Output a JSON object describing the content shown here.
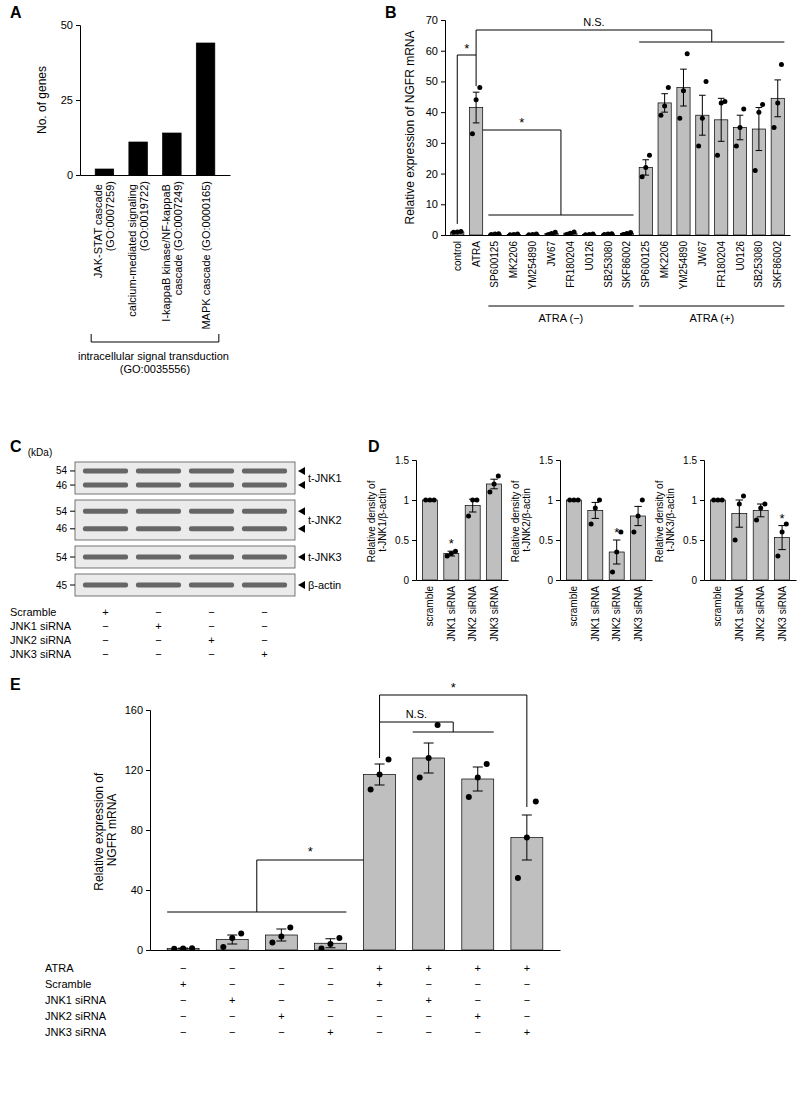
{
  "chart_data": [
    {
      "panel": "A",
      "type": "bar",
      "ylabel": "No. of genes",
      "categories": [
        "JAK-STAT cascade (GO:0007259)",
        "calcium-mediated signaling (GO:0019722)",
        "I-kappaB kinase/NF-kappaB cascade (GO:0007249)",
        "MAPK cascade (GO:0000165)"
      ],
      "values": [
        2,
        11,
        14,
        44
      ],
      "color": "#000000",
      "ylim": [
        0,
        50
      ],
      "yticks": [
        0,
        25,
        50
      ],
      "group_label": "intracellular signal transduction (GO:0035556)"
    },
    {
      "panel": "B",
      "type": "bar",
      "ylabel": "Relative expression of NGFR mRNA",
      "categories": [
        "control",
        "ATRA",
        "SP600125",
        "MK2206",
        "YM254890",
        "JW67",
        "FR180204",
        "U0126",
        "SB253080",
        "SKF86002",
        "SP600125",
        "MK2206",
        "YM254890",
        "JW67",
        "FR180204",
        "U0126",
        "SB253080",
        "SKF86002"
      ],
      "values": [
        1.0,
        41.5,
        0.3,
        0.2,
        0.2,
        0.5,
        0.6,
        0.2,
        0.3,
        0.5,
        22.0,
        43.0,
        48.0,
        39.0,
        37.5,
        35.0,
        34.5,
        44.5
      ],
      "errors": [
        0.1,
        5.0,
        0.1,
        0.05,
        0.05,
        0.3,
        0.3,
        0.05,
        0.1,
        0.3,
        2.5,
        3.0,
        6.0,
        6.5,
        7.0,
        4.0,
        7.0,
        6.0
      ],
      "points": [
        [
          0.9,
          1.0,
          1.1
        ],
        [
          33,
          44,
          48
        ],
        [
          0.2,
          0.3,
          0.4
        ],
        [
          0.1,
          0.2,
          0.3
        ],
        [
          0.1,
          0.2,
          0.3
        ],
        [
          0.1,
          0.5,
          0.9
        ],
        [
          0.2,
          0.6,
          1.0
        ],
        [
          0.1,
          0.2,
          0.3
        ],
        [
          0.2,
          0.3,
          0.4
        ],
        [
          0.2,
          0.5,
          0.8
        ],
        [
          19,
          22,
          26
        ],
        [
          39,
          42,
          48
        ],
        [
          38,
          47,
          59
        ],
        [
          29,
          38,
          50
        ],
        [
          26,
          43,
          43.5
        ],
        [
          29,
          35,
          41
        ],
        [
          21,
          40,
          42.5
        ],
        [
          35,
          43,
          55.5
        ]
      ],
      "color": "#bfbfbf",
      "ylim": [
        0,
        70
      ],
      "yticks": [
        0,
        10,
        20,
        30,
        40,
        50,
        60,
        70
      ],
      "groups": [
        "ATRA (−)",
        "ATRA (+)"
      ],
      "annotations": [
        "*",
        "*",
        "N.S."
      ]
    },
    {
      "panel": "C",
      "type": "blot",
      "unit_label": "(kDa)",
      "rows": [
        {
          "label": "t-JNK1",
          "markers": [
            54,
            46
          ]
        },
        {
          "label": "t-JNK2",
          "markers": [
            54,
            46
          ]
        },
        {
          "label": "t-JNK3",
          "markers": [
            54
          ]
        },
        {
          "label": "β-actin",
          "markers": [
            45
          ]
        }
      ],
      "conditions": [
        {
          "label": "Scramble",
          "signs": [
            "+",
            "−",
            "−",
            "−"
          ]
        },
        {
          "label": "JNK1 siRNA",
          "signs": [
            "−",
            "+",
            "−",
            "−"
          ]
        },
        {
          "label": "JNK2 siRNA",
          "signs": [
            "−",
            "−",
            "+",
            "−"
          ]
        },
        {
          "label": "JNK3 siRNA",
          "signs": [
            "−",
            "−",
            "−",
            "+"
          ]
        }
      ]
    },
    {
      "panel": "D",
      "type": "bar",
      "ylabel": "Relative density of t-JNK1/β-actin",
      "categories": [
        "scramble",
        "JNK1 siRNA",
        "JNK2 siRNA",
        "JNK3 siRNA"
      ],
      "values": [
        1,
        0.33,
        0.93,
        1.2
      ],
      "errors": [
        0,
        0.03,
        0.08,
        0.06
      ],
      "points": [
        [
          1,
          1,
          1
        ],
        [
          0.3,
          0.33,
          0.36
        ],
        [
          0.8,
          1.0,
          1.0
        ],
        [
          1.1,
          1.2,
          1.3
        ]
      ],
      "significance": [
        null,
        "*",
        null,
        null
      ],
      "color": "#bfbfbf",
      "ylim": [
        0,
        1.5
      ],
      "yticks": [
        0,
        0.5,
        1,
        1.5
      ]
    },
    {
      "type": "bar",
      "ylabel": "Relative density of t-JNK2/β-actin",
      "categories": [
        "scramble",
        "JNK1 siRNA",
        "JNK2 siRNA",
        "JNK3 siRNA"
      ],
      "values": [
        1,
        0.87,
        0.35,
        0.8
      ],
      "errors": [
        0,
        0.1,
        0.15,
        0.12
      ],
      "points": [
        [
          1,
          1,
          1
        ],
        [
          0.7,
          0.9,
          1.0
        ],
        [
          0.1,
          0.35,
          0.6
        ],
        [
          0.6,
          0.8,
          1.0
        ]
      ],
      "significance": [
        null,
        null,
        "*",
        null
      ],
      "color": "#bfbfbf",
      "ylim": [
        0,
        1.5
      ],
      "yticks": [
        0,
        0.5,
        1,
        1.5
      ]
    },
    {
      "type": "bar",
      "ylabel": "Relative density of t-JNK3/β-actin",
      "categories": [
        "scramble",
        "JNK1 siRNA",
        "JNK2 siRNA",
        "JNK3 siRNA"
      ],
      "values": [
        1,
        0.83,
        0.87,
        0.53
      ],
      "errors": [
        0,
        0.17,
        0.08,
        0.15
      ],
      "points": [
        [
          1,
          1,
          1
        ],
        [
          0.5,
          0.95,
          1.05
        ],
        [
          0.75,
          0.9,
          0.95
        ],
        [
          0.3,
          0.6,
          0.7
        ]
      ],
      "significance": [
        null,
        null,
        null,
        "*"
      ],
      "color": "#bfbfbf",
      "ylim": [
        0,
        1.5
      ],
      "yticks": [
        0,
        0.5,
        1,
        1.5
      ]
    },
    {
      "panel": "E",
      "type": "bar",
      "ylabel": "Relative expression of NGFR mRNA",
      "categories": [
        null,
        null,
        null,
        null,
        null,
        null,
        null,
        null
      ],
      "values": [
        1,
        7,
        10,
        4.5,
        117,
        128,
        114,
        75
      ],
      "errors": [
        0.3,
        3,
        4,
        3,
        7,
        10,
        8,
        15
      ],
      "points": [
        [
          0.8,
          1,
          1.2
        ],
        [
          2,
          8,
          11
        ],
        [
          5,
          9,
          15
        ],
        [
          1,
          4,
          8
        ],
        [
          107,
          117,
          127
        ],
        [
          115,
          128,
          150
        ],
        [
          102,
          115,
          124
        ],
        [
          48,
          75,
          99
        ]
      ],
      "color": "#bfbfbf",
      "ylim": [
        0,
        160
      ],
      "yticks": [
        0,
        40,
        80,
        120,
        160
      ],
      "conditions": [
        {
          "label": "ATRA",
          "signs": [
            "−",
            "−",
            "−",
            "−",
            "+",
            "+",
            "+",
            "+"
          ]
        },
        {
          "label": "Scramble",
          "signs": [
            "+",
            "−",
            "−",
            "−",
            "+",
            "−",
            "−",
            "−"
          ]
        },
        {
          "label": "JNK1 siRNA",
          "signs": [
            "−",
            "+",
            "−",
            "−",
            "−",
            "+",
            "−",
            "−"
          ]
        },
        {
          "label": "JNK2 siRNA",
          "signs": [
            "−",
            "−",
            "+",
            "−",
            "−",
            "−",
            "+",
            "−"
          ]
        },
        {
          "label": "JNK3 siRNA",
          "signs": [
            "−",
            "−",
            "−",
            "+",
            "−",
            "−",
            "−",
            "+"
          ]
        }
      ],
      "annotations": [
        "*",
        "N.S.",
        "*"
      ]
    }
  ]
}
